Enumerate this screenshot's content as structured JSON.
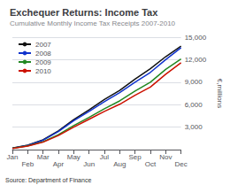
{
  "chart_data": {
    "type": "line",
    "title": "Exchequer Returns: Income Tax",
    "subtitle": "Cumulative Monthly Income Tax Receipts 2007-2010",
    "source": "Source: Department of Finance",
    "ylabel": "€,millions",
    "categories": [
      "Jan",
      "Feb",
      "Mar",
      "Apr",
      "May",
      "Jun",
      "Jul",
      "Aug",
      "Sep",
      "Oct",
      "Nov",
      "Dec"
    ],
    "series": [
      {
        "name": "2007",
        "color": "#111111",
        "values": [
          200,
          600,
          1300,
          2500,
          4000,
          5300,
          6700,
          7900,
          9400,
          10800,
          12400,
          13800
        ]
      },
      {
        "name": "2008",
        "color": "#1133cc",
        "values": [
          190,
          570,
          1250,
          2400,
          3850,
          5100,
          6400,
          7600,
          9000,
          10300,
          12000,
          13600
        ]
      },
      {
        "name": "2009",
        "color": "#228822",
        "values": [
          170,
          500,
          1050,
          2000,
          3200,
          4300,
          5450,
          6500,
          7800,
          9000,
          10700,
          12100
        ]
      },
      {
        "name": "2010",
        "color": "#cc1100",
        "values": [
          160,
          470,
          990,
          1880,
          3000,
          4050,
          5100,
          6050,
          7250,
          8350,
          10050,
          11600
        ]
      }
    ],
    "ylim": [
      0,
      15000
    ],
    "yticks": [
      {
        "value": 3000,
        "label": "3,000"
      },
      {
        "value": 6000,
        "label": "6,000"
      },
      {
        "value": 9000,
        "label": "9,000"
      },
      {
        "value": 12000,
        "label": "12,000"
      },
      {
        "value": 15000,
        "label": "15,000"
      }
    ],
    "grid": true,
    "legend": "top-left"
  }
}
